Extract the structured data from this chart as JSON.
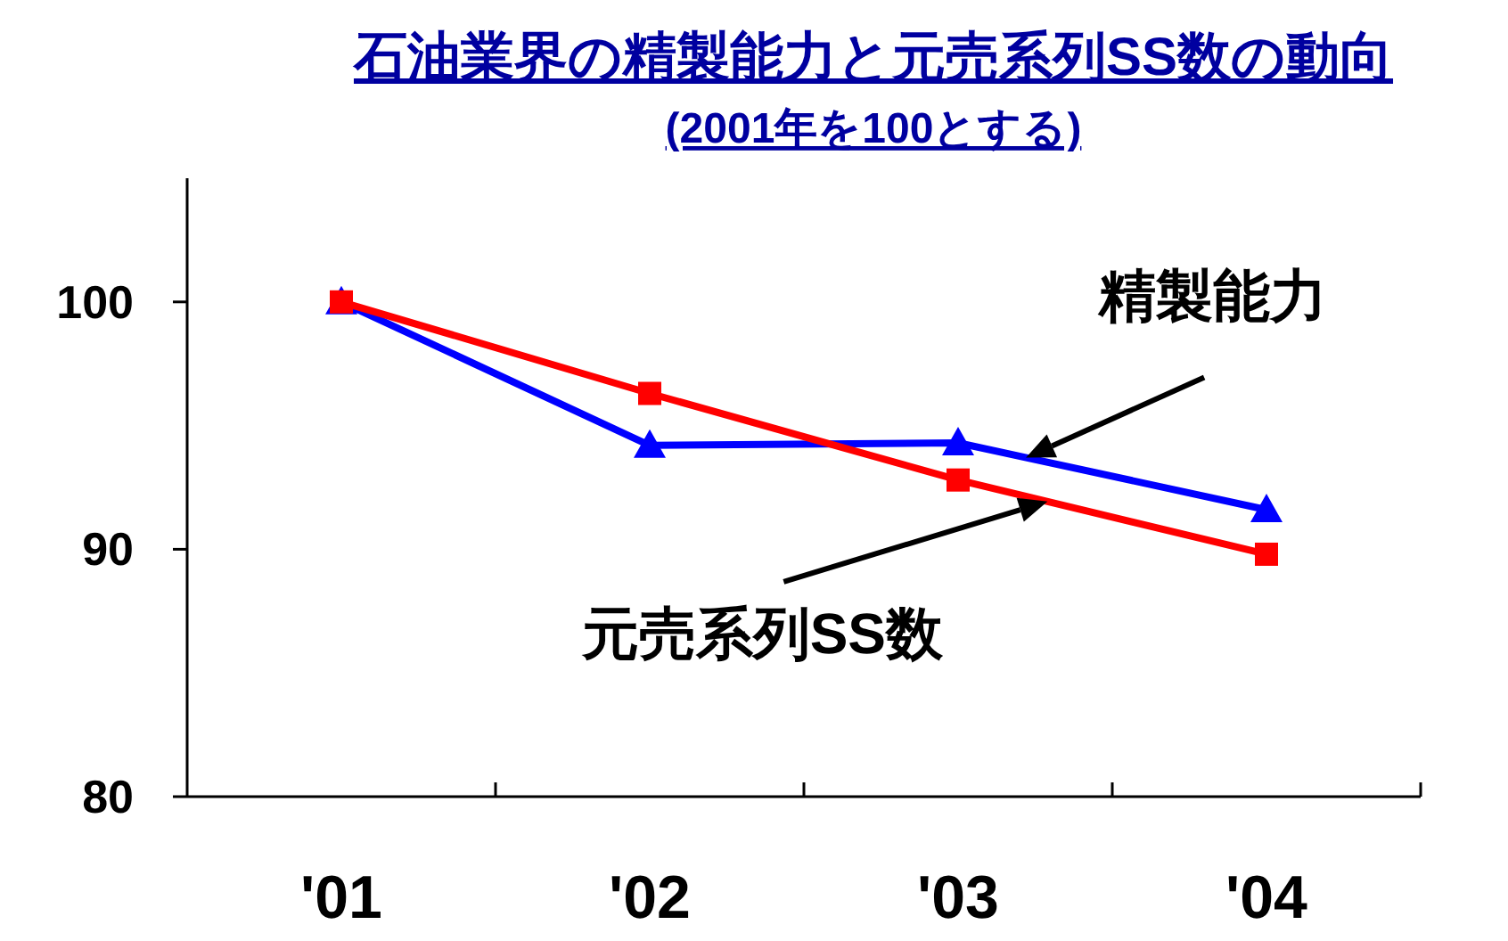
{
  "chart_data": {
    "type": "line",
    "title": "石油業界の精製能力と元売系列SS数の動向",
    "subtitle": "(2001年を100とする)",
    "categories": [
      "'01",
      "'02",
      "'03",
      "'04"
    ],
    "series": [
      {
        "name": "精製能力",
        "color": "#0000ff",
        "marker": "triangle",
        "values": [
          100,
          94.2,
          94.3,
          91.6
        ]
      },
      {
        "name": "元売系列SS数",
        "color": "#ff0000",
        "marker": "square",
        "values": [
          100,
          96.3,
          92.8,
          89.8
        ]
      }
    ],
    "ylim": [
      80,
      105
    ],
    "yticks": [
      80,
      90,
      100
    ],
    "grid": false,
    "line_style": "solid"
  }
}
